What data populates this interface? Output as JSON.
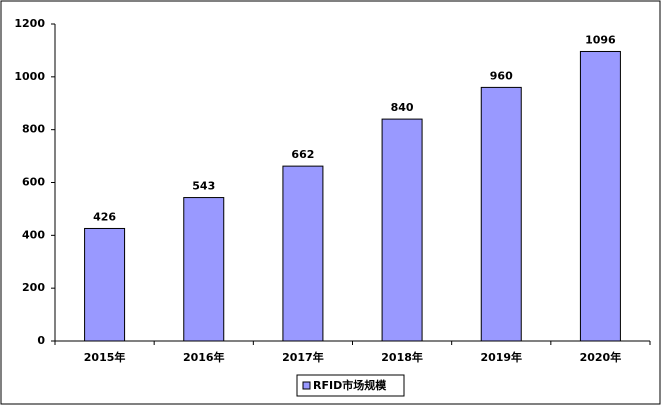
{
  "chart_data": {
    "type": "bar",
    "categories": [
      "2015年",
      "2016年",
      "2017年",
      "2018年",
      "2019年",
      "2020年"
    ],
    "series": [
      {
        "name": "RFID市场规模",
        "color": "#9999ff",
        "values": [
          426,
          543,
          662,
          840,
          960,
          1096
        ]
      }
    ],
    "ylim": [
      0,
      1200
    ],
    "yticks": [
      0,
      200,
      400,
      600,
      800,
      1000,
      1200
    ],
    "grid": false,
    "legend": "bottom"
  }
}
